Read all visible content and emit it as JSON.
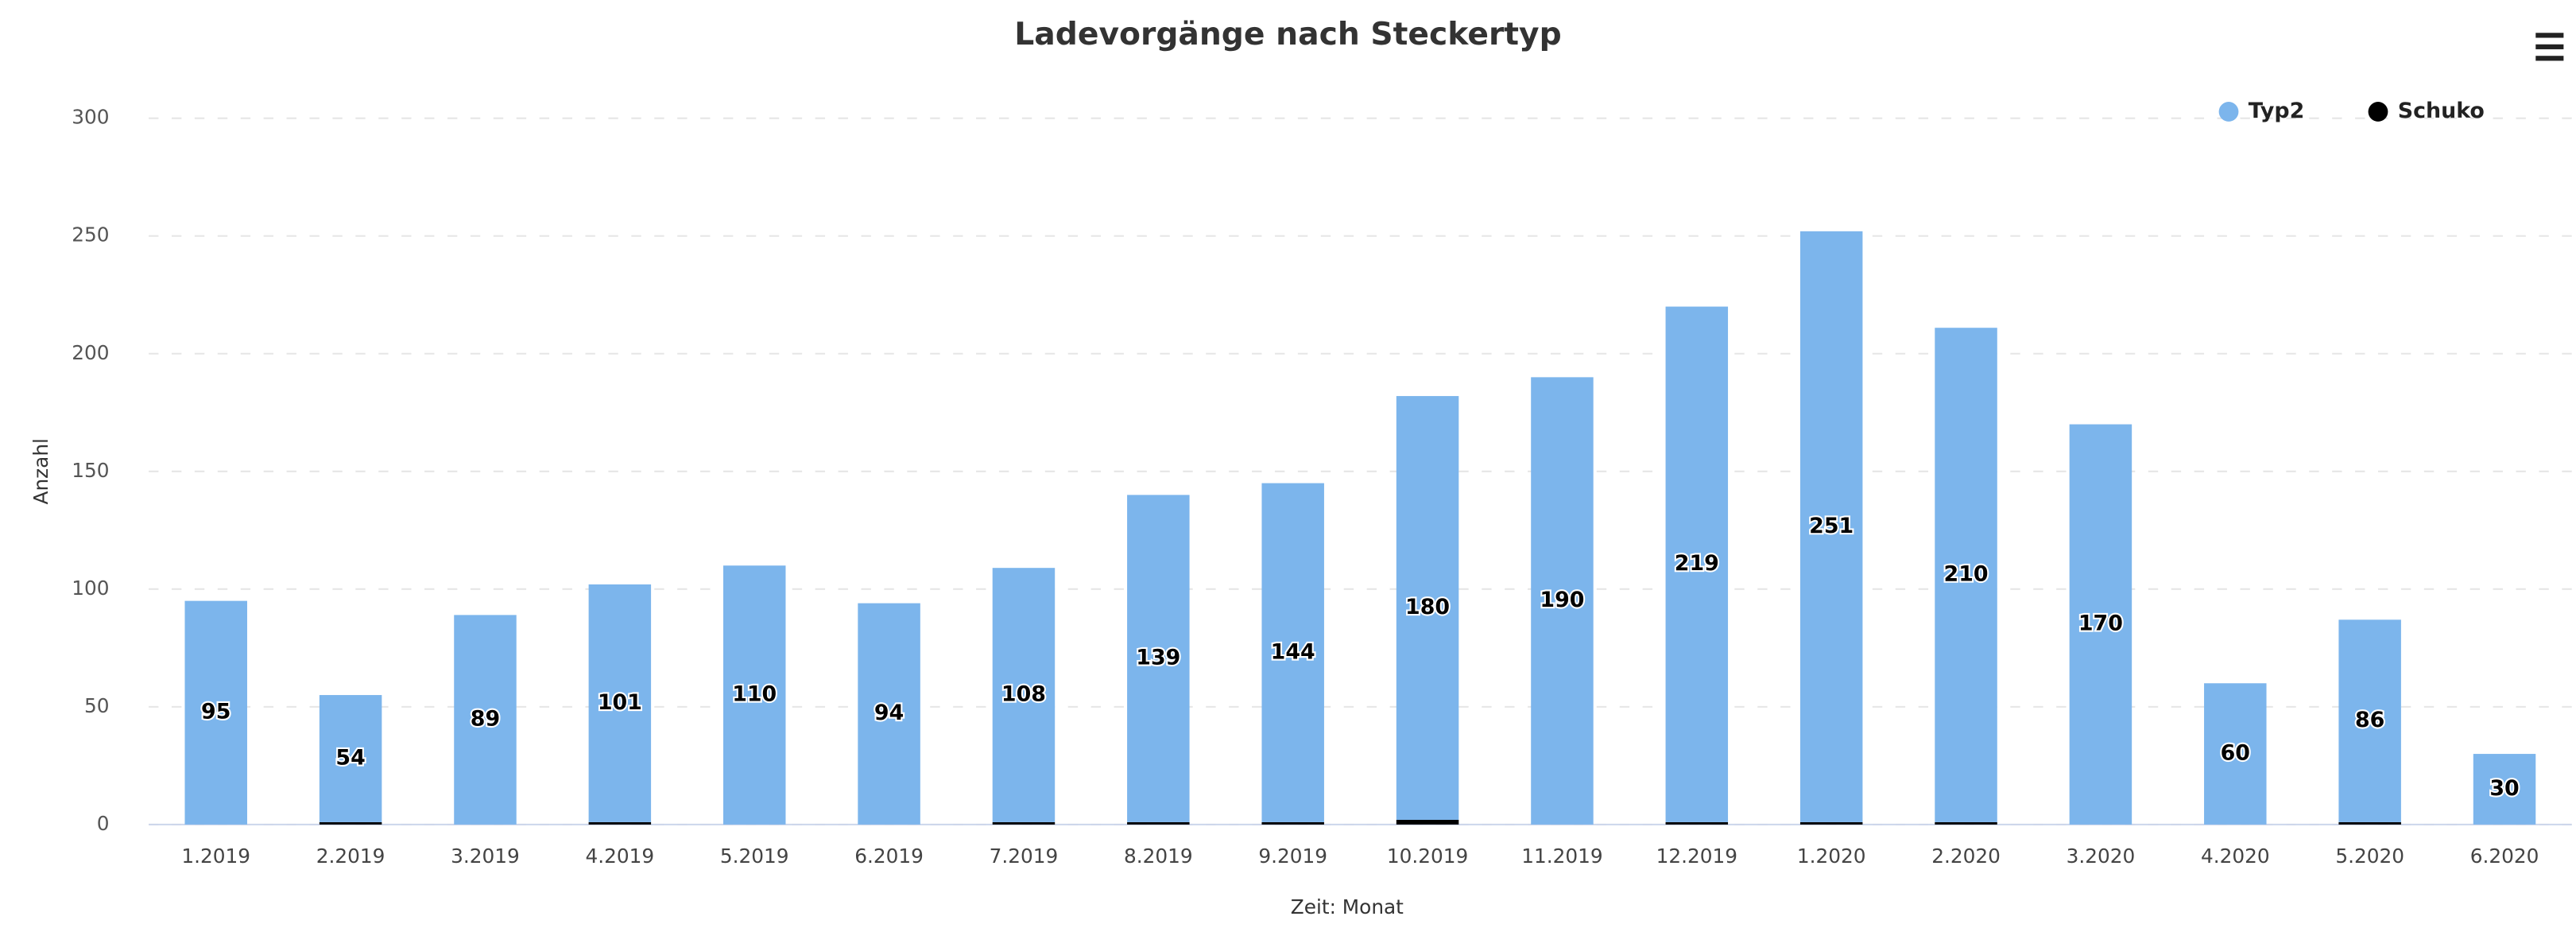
{
  "chart_data": {
    "type": "bar",
    "stacked": true,
    "title": "Ladevorgänge nach Steckertyp",
    "x_label": "Zeit: Monat",
    "y_label": "Anzahl",
    "categories": [
      "1.2019",
      "2.2019",
      "3.2019",
      "4.2019",
      "5.2019",
      "6.2019",
      "7.2019",
      "8.2019",
      "9.2019",
      "10.2019",
      "11.2019",
      "12.2019",
      "1.2020",
      "2.2020",
      "3.2020",
      "4.2020",
      "5.2020",
      "6.2020"
    ],
    "series": [
      {
        "name": "Typ2",
        "color": "#7cb5ec",
        "values": [
          95,
          54,
          89,
          101,
          110,
          94,
          108,
          139,
          144,
          180,
          190,
          219,
          251,
          210,
          170,
          60,
          86,
          30
        ]
      },
      {
        "name": "Schuko",
        "color": "#000000",
        "values": [
          0,
          1,
          0,
          1,
          0,
          0,
          1,
          1,
          1,
          2,
          0,
          1,
          1,
          1,
          0,
          0,
          1,
          null
        ]
      }
    ],
    "ylim": [
      0,
      300
    ],
    "yticks": [
      0,
      50,
      100,
      150,
      200,
      250,
      300
    ],
    "grid": true,
    "legend": "top-right"
  }
}
